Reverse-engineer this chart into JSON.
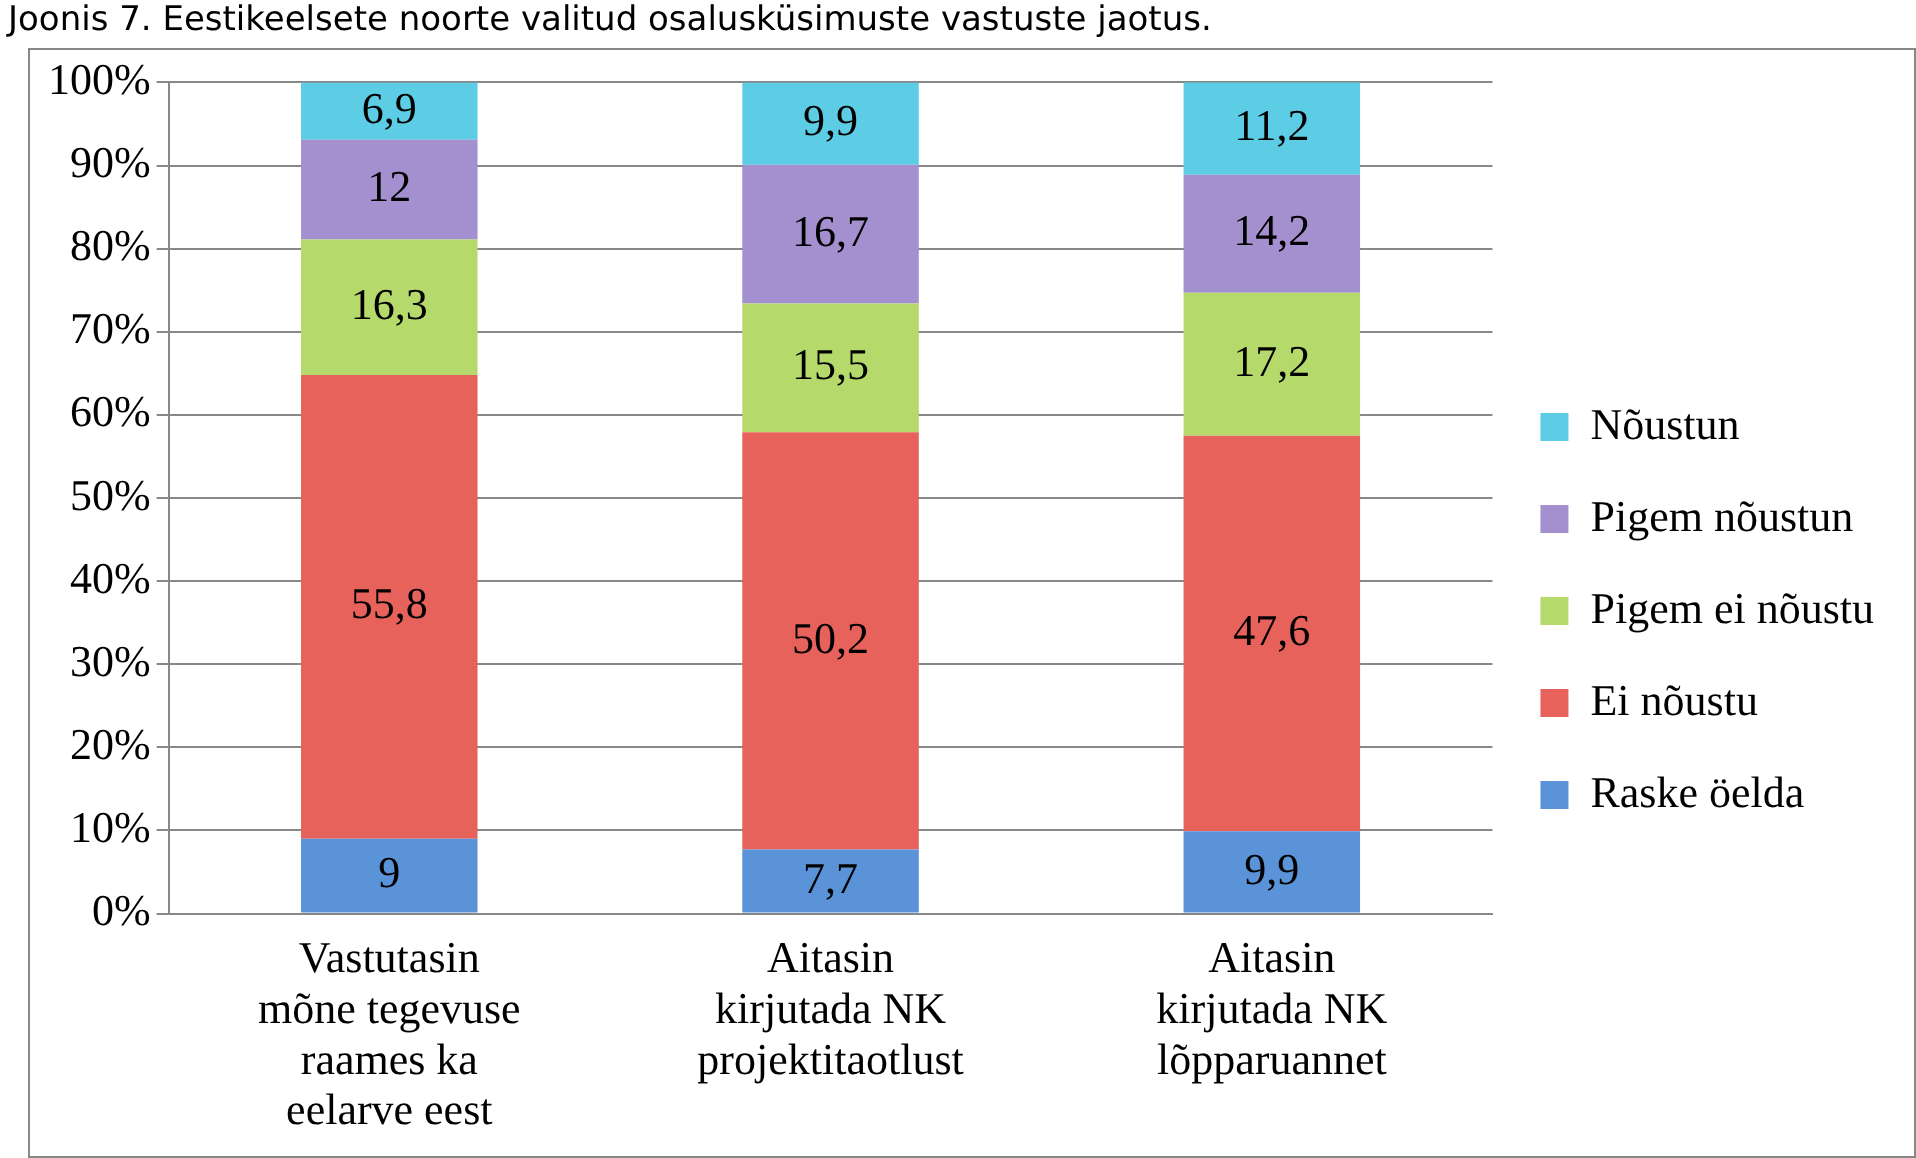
{
  "chart_data": {
    "type": "bar",
    "stacked": true,
    "title": "Joonis 7. Eestikeelsete noorte valitud osalusküsimuste vastuste jaotus.",
    "categories": [
      "Vastutasin mõne tegevuse raames ka eelarve eest",
      "Aitasin kirjutada NK projektitaotlust",
      "Aitasin kirjutada NK lõpparuannet"
    ],
    "series": [
      {
        "name": "Raske öelda",
        "color": "#5b93d8",
        "values": [
          9,
          7.7,
          9.9
        ],
        "value_labels": [
          "9",
          "7,7",
          "9,9"
        ]
      },
      {
        "name": "Ei nõustu",
        "color": "#e8625c",
        "values": [
          55.8,
          50.2,
          47.6
        ],
        "value_labels": [
          "55,8",
          "50,2",
          "47,6"
        ]
      },
      {
        "name": "Pigem ei nõustu",
        "color": "#b5d96a",
        "values": [
          16.3,
          15.5,
          17.2
        ],
        "value_labels": [
          "16,3",
          "15,5",
          "17,2"
        ]
      },
      {
        "name": "Pigem nõustun",
        "color": "#a48fcf",
        "values": [
          12,
          16.7,
          14.2
        ],
        "value_labels": [
          "12",
          "16,7",
          "14,2"
        ]
      },
      {
        "name": "Nõustun",
        "color": "#5dcde6",
        "values": [
          6.9,
          9.9,
          11.2
        ],
        "value_labels": [
          "6,9",
          "9,9",
          "11,2"
        ]
      }
    ],
    "ylim": [
      0,
      100
    ],
    "yticks": [
      {
        "value": 0,
        "label": "0%"
      },
      {
        "value": 10,
        "label": "10%"
      },
      {
        "value": 20,
        "label": "20%"
      },
      {
        "value": 30,
        "label": "30%"
      },
      {
        "value": 40,
        "label": "40%"
      },
      {
        "value": 50,
        "label": "50%"
      },
      {
        "value": 60,
        "label": "60%"
      },
      {
        "value": 70,
        "label": "70%"
      },
      {
        "value": 80,
        "label": "80%"
      },
      {
        "value": 90,
        "label": "90%"
      },
      {
        "value": 100,
        "label": "100%"
      }
    ],
    "grid": "y",
    "legend": "right"
  }
}
